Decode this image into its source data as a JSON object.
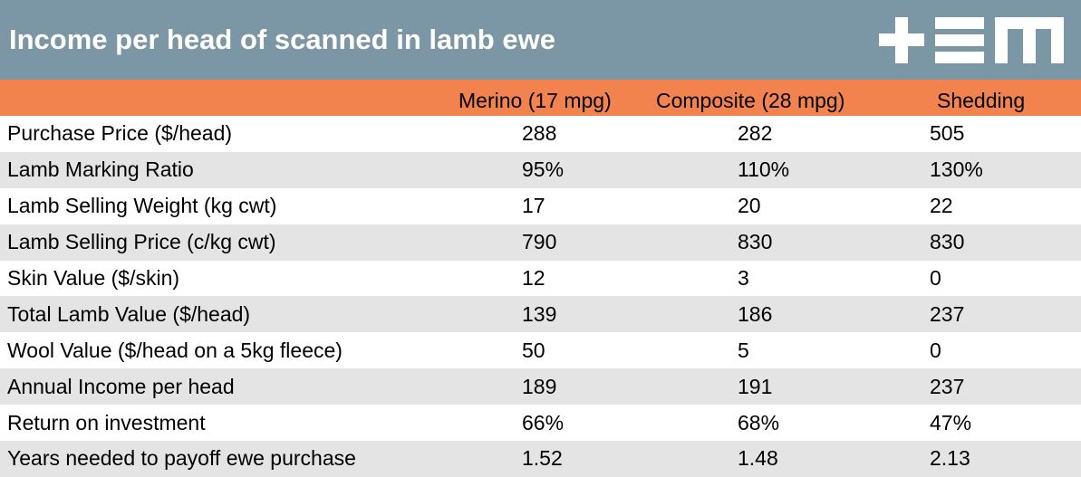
{
  "title": "Income per head of scanned in lamb ewe",
  "logo_icon": "tem-logo",
  "colors": {
    "title_bar": "#7b96a5",
    "header_bar": "#f2834f",
    "alt_row": "#e4e4e4"
  },
  "chart_data": {
    "type": "table",
    "title": "Income per head of scanned in lamb ewe",
    "columns": [
      "Merino (17 mpg)",
      "Composite (28 mpg)",
      "Shedding"
    ],
    "rows": [
      {
        "label": "Purchase Price ($/head)",
        "values": [
          "288",
          "282",
          "505"
        ]
      },
      {
        "label": "Lamb Marking Ratio",
        "values": [
          "95%",
          "110%",
          "130%"
        ]
      },
      {
        "label": "Lamb Selling Weight (kg cwt)",
        "values": [
          "17",
          "20",
          "22"
        ]
      },
      {
        "label": "Lamb Selling Price (c/kg cwt)",
        "values": [
          "790",
          "830",
          "830"
        ]
      },
      {
        "label": "Skin Value ($/skin)",
        "values": [
          "12",
          "3",
          "0"
        ]
      },
      {
        "label": "Total Lamb Value ($/head)",
        "values": [
          "139",
          "186",
          "237"
        ]
      },
      {
        "label": "Wool Value ($/head on a 5kg fleece)",
        "values": [
          "50",
          "5",
          "0"
        ]
      },
      {
        "label": "Annual Income per head",
        "values": [
          "189",
          "191",
          "237"
        ]
      },
      {
        "label": "Return on investment",
        "values": [
          "66%",
          "68%",
          "47%"
        ]
      },
      {
        "label": "Years needed to payoff ewe purchase",
        "values": [
          "1.52",
          "1.48",
          "2.13"
        ]
      }
    ]
  }
}
